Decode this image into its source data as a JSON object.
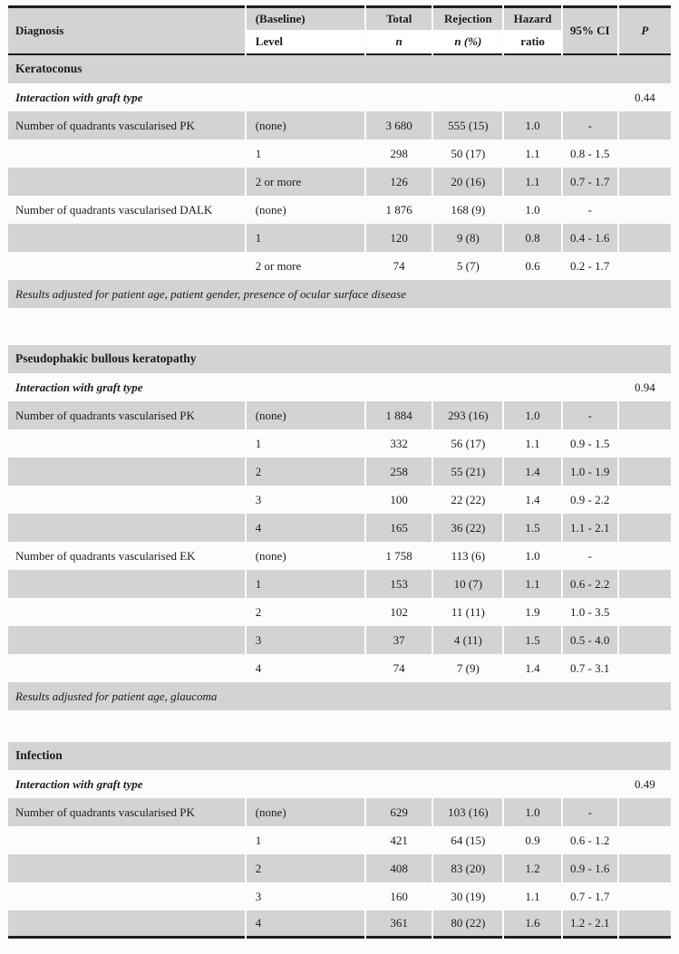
{
  "theme": {
    "band_color": "#d2d3d2",
    "rule_color": "#1c1c1c",
    "text_color": "#1c1c1c",
    "page_bg": "#fcfcfb"
  },
  "table": {
    "header": {
      "diagnosis": "Diagnosis",
      "baseline": "(Baseline)",
      "level": "Level",
      "total": "Total",
      "n": "n",
      "rejection": "Rejection",
      "n_pct": "n (%)",
      "hazard": "Hazard",
      "ratio": "ratio",
      "ci": "95% CI",
      "p": "P"
    },
    "sections": [
      {
        "title": "Keratoconus",
        "interaction_label": "Interaction with graft type",
        "interaction_p": "0.44",
        "rows": [
          {
            "diagnosis": "Number of quadrants vascularised PK",
            "level": "(none)",
            "total": "3 680",
            "rejection": "555 (15)",
            "hazard": "1.0",
            "ci": "-"
          },
          {
            "diagnosis": "",
            "level": "1",
            "total": "298",
            "rejection": "50 (17)",
            "hazard": "1.1",
            "ci": "0.8 - 1.5"
          },
          {
            "diagnosis": "",
            "level": "2 or more",
            "total": "126",
            "rejection": "20 (16)",
            "hazard": "1.1",
            "ci": "0.7 - 1.7"
          },
          {
            "diagnosis": "Number of quadrants vascularised DALK",
            "level": "(none)",
            "total": "1 876",
            "rejection": "168 (9)",
            "hazard": "1.0",
            "ci": "-"
          },
          {
            "diagnosis": "",
            "level": "1",
            "total": "120",
            "rejection": "9 (8)",
            "hazard": "0.8",
            "ci": "0.4 - 1.6"
          },
          {
            "diagnosis": "",
            "level": "2 or more",
            "total": "74",
            "rejection": "5 (7)",
            "hazard": "0.6",
            "ci": "0.2 - 1.7"
          }
        ],
        "footnote": "Results adjusted for patient age, patient gender, presence of ocular surface disease"
      },
      {
        "title": "Pseudophakic bullous keratopathy",
        "interaction_label": "Interaction with graft type",
        "interaction_p": "0.94",
        "rows": [
          {
            "diagnosis": "Number of quadrants vascularised PK",
            "level": "(none)",
            "total": "1 884",
            "rejection": "293 (16)",
            "hazard": "1.0",
            "ci": "-"
          },
          {
            "diagnosis": "",
            "level": "1",
            "total": "332",
            "rejection": "56 (17)",
            "hazard": "1.1",
            "ci": "0.9 - 1.5"
          },
          {
            "diagnosis": "",
            "level": "2",
            "total": "258",
            "rejection": "55 (21)",
            "hazard": "1.4",
            "ci": "1.0 - 1.9"
          },
          {
            "diagnosis": "",
            "level": "3",
            "total": "100",
            "rejection": "22 (22)",
            "hazard": "1.4",
            "ci": "0.9 - 2.2"
          },
          {
            "diagnosis": "",
            "level": "4",
            "total": "165",
            "rejection": "36 (22)",
            "hazard": "1.5",
            "ci": "1.1 - 2.1"
          },
          {
            "diagnosis": "Number of quadrants vascularised EK",
            "level": "(none)",
            "total": "1 758",
            "rejection": "113 (6)",
            "hazard": "1.0",
            "ci": "-"
          },
          {
            "diagnosis": "",
            "level": "1",
            "total": "153",
            "rejection": "10 (7)",
            "hazard": "1.1",
            "ci": "0.6 - 2.2"
          },
          {
            "diagnosis": "",
            "level": "2",
            "total": "102",
            "rejection": "11 (11)",
            "hazard": "1.9",
            "ci": "1.0 - 3.5"
          },
          {
            "diagnosis": "",
            "level": "3",
            "total": "37",
            "rejection": "4 (11)",
            "hazard": "1.5",
            "ci": "0.5 - 4.0"
          },
          {
            "diagnosis": "",
            "level": "4",
            "total": "74",
            "rejection": "7 (9)",
            "hazard": "1.4",
            "ci": "0.7 - 3.1"
          }
        ],
        "footnote": "Results adjusted for patient age, glaucoma"
      },
      {
        "title": "Infection",
        "interaction_label": "Interaction with graft type",
        "interaction_p": "0.49",
        "rows": [
          {
            "diagnosis": "Number of quadrants vascularised PK",
            "level": "(none)",
            "total": "629",
            "rejection": "103 (16)",
            "hazard": "1.0",
            "ci": "-"
          },
          {
            "diagnosis": "",
            "level": "1",
            "total": "421",
            "rejection": "64 (15)",
            "hazard": "0.9",
            "ci": "0.6 - 1.2"
          },
          {
            "diagnosis": "",
            "level": "2",
            "total": "408",
            "rejection": "83 (20)",
            "hazard": "1.2",
            "ci": "0.9 - 1.6"
          },
          {
            "diagnosis": "",
            "level": "3",
            "total": "160",
            "rejection": "30 (19)",
            "hazard": "1.1",
            "ci": "0.7 - 1.7"
          },
          {
            "diagnosis": "",
            "level": "4",
            "total": "361",
            "rejection": "80 (22)",
            "hazard": "1.6",
            "ci": "1.2 - 2.1"
          }
        ],
        "footnote": null
      }
    ]
  }
}
